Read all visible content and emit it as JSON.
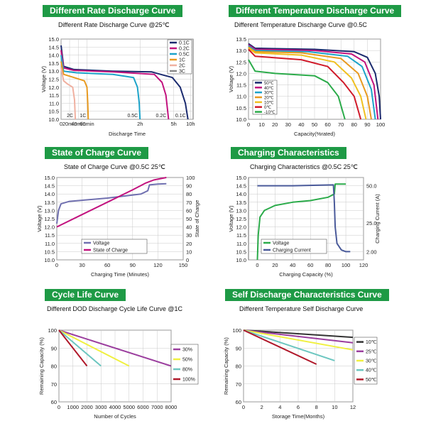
{
  "chart_data": [
    {
      "type": "line",
      "banner": "Different Rate Discharge Curve",
      "title": "Different Rate Discharge Curve @25℃",
      "xlabel": "Discharge Time",
      "ylabel": "Voltage (V)",
      "ylim": [
        10.0,
        15.0
      ],
      "y_ticks": [
        "10.0",
        "10.5",
        "11.0",
        "11.5",
        "12.0",
        "12.5",
        "13.0",
        "13.5",
        "14.0",
        "14.5",
        "15.0"
      ],
      "x_ticks": [
        {
          "label": "0",
          "v": 0
        },
        {
          "label": "20min",
          "v": 0.33
        },
        {
          "label": "40min",
          "v": 0.67
        },
        {
          "label": "60min",
          "v": 1.0
        },
        {
          "label": "2h",
          "v": 3.05
        },
        {
          "label": "5h",
          "v": 4.35
        },
        {
          "label": "10h",
          "v": 5.0
        }
      ],
      "xlim": [
        0,
        5.1
      ],
      "series": [
        {
          "name": "0.1C",
          "color": "#1a2a6e",
          "points": [
            [
              0,
              14.6
            ],
            [
              0.1,
              13.3
            ],
            [
              0.5,
              13.1
            ],
            [
              2.0,
              13.0
            ],
            [
              3.5,
              12.95
            ],
            [
              4.3,
              12.6
            ],
            [
              4.6,
              12.0
            ],
            [
              4.8,
              11.0
            ],
            [
              4.9,
              10.0
            ]
          ]
        },
        {
          "name": "0.2C",
          "color": "#c2127e",
          "points": [
            [
              0,
              14.3
            ],
            [
              0.1,
              13.2
            ],
            [
              0.5,
              13.05
            ],
            [
              2.0,
              12.95
            ],
            [
              3.6,
              12.8
            ],
            [
              3.9,
              12.3
            ],
            [
              4.05,
              11.5
            ],
            [
              4.15,
              10.0
            ]
          ]
        },
        {
          "name": "0.5C",
          "color": "#1ca3c9",
          "points": [
            [
              0,
              14.0
            ],
            [
              0.1,
              13.0
            ],
            [
              0.6,
              12.9
            ],
            [
              2.0,
              12.8
            ],
            [
              2.8,
              12.6
            ],
            [
              2.95,
              12.0
            ],
            [
              3.02,
              11.0
            ],
            [
              3.05,
              10.0
            ]
          ]
        },
        {
          "name": "1C",
          "color": "#e89a20",
          "points": [
            [
              0,
              13.6
            ],
            [
              0.1,
              12.8
            ],
            [
              0.5,
              12.6
            ],
            [
              0.9,
              12.4
            ],
            [
              1.0,
              12.0
            ],
            [
              1.03,
              11.0
            ],
            [
              1.05,
              10.0
            ]
          ]
        },
        {
          "name": "2C",
          "color": "#f0b0a0",
          "points": [
            [
              0,
              13.2
            ],
            [
              0.1,
              12.4
            ],
            [
              0.25,
              12.2
            ],
            [
              0.45,
              12.0
            ],
            [
              0.52,
              11.2
            ],
            [
              0.55,
              10.0
            ]
          ]
        },
        {
          "name": "3C",
          "color": "#888888",
          "points": []
        }
      ],
      "legend": [
        "0.1C",
        "0.2C",
        "0.5C",
        "1C",
        "2C",
        "3C"
      ],
      "annotations": [
        "2C",
        "1C",
        "0.5C",
        "0.2C",
        "0.1C"
      ]
    },
    {
      "type": "line",
      "banner": "Different Temperature Discharge Curve",
      "title": "Different Temperature Discharge Curve @0.5C",
      "xlabel": "Capacity(%rated)",
      "ylabel": "Voltage (V)",
      "xlim": [
        0,
        100
      ],
      "ylim": [
        10.0,
        13.5
      ],
      "y_ticks": [
        "10.0",
        "10.5",
        "11.0",
        "11.5",
        "12.0",
        "12.5",
        "13.0",
        "13.5"
      ],
      "x_ticks": [
        "0",
        "10",
        "20",
        "30",
        "40",
        "50",
        "60",
        "70",
        "80",
        "90",
        "100"
      ],
      "series": [
        {
          "name": "50℃",
          "color": "#1a2a6e",
          "points": [
            [
              0,
              13.3
            ],
            [
              5,
              13.1
            ],
            [
              50,
              13.05
            ],
            [
              80,
              12.95
            ],
            [
              90,
              12.7
            ],
            [
              96,
              12.0
            ],
            [
              99,
              11.0
            ],
            [
              100,
              10.0
            ]
          ]
        },
        {
          "name": "40℃",
          "color": "#c2127e",
          "points": [
            [
              0,
              13.25
            ],
            [
              5,
              13.05
            ],
            [
              50,
              13.0
            ],
            [
              78,
              12.85
            ],
            [
              88,
              12.5
            ],
            [
              95,
              11.5
            ],
            [
              98,
              10.0
            ]
          ]
        },
        {
          "name": "30℃",
          "color": "#1ca3c9",
          "points": [
            [
              0,
              13.2
            ],
            [
              5,
              13.0
            ],
            [
              45,
              12.95
            ],
            [
              75,
              12.75
            ],
            [
              86,
              12.3
            ],
            [
              93,
              11.3
            ],
            [
              96,
              10.0
            ]
          ]
        },
        {
          "name": "20℃",
          "color": "#e89a20",
          "points": [
            [
              0,
              13.15
            ],
            [
              5,
              12.95
            ],
            [
              40,
              12.9
            ],
            [
              70,
              12.65
            ],
            [
              83,
              12.0
            ],
            [
              90,
              11.0
            ],
            [
              93,
              10.0
            ]
          ]
        },
        {
          "name": "10℃",
          "color": "#f0c020",
          "points": [
            [
              0,
              13.1
            ],
            [
              5,
              12.9
            ],
            [
              40,
              12.8
            ],
            [
              65,
              12.5
            ],
            [
              78,
              11.8
            ],
            [
              85,
              11.0
            ],
            [
              89,
              10.0
            ]
          ]
        },
        {
          "name": "0℃",
          "color": "#d01a2a",
          "points": [
            [
              0,
              13.05
            ],
            [
              5,
              12.75
            ],
            [
              40,
              12.6
            ],
            [
              60,
              12.3
            ],
            [
              72,
              11.6
            ],
            [
              80,
              11.0
            ],
            [
              85,
              10.0
            ]
          ]
        },
        {
          "name": "-10℃",
          "color": "#2bab4a",
          "points": [
            [
              0,
              12.6
            ],
            [
              5,
              12.1
            ],
            [
              20,
              12.0
            ],
            [
              50,
              11.9
            ],
            [
              60,
              11.6
            ],
            [
              68,
              11.0
            ],
            [
              73,
              10.0
            ]
          ]
        }
      ],
      "legend": [
        "50℃",
        "40℃",
        "30℃",
        "20℃",
        "10℃",
        "0℃",
        "-10℃"
      ]
    },
    {
      "type": "line",
      "banner": "State of Charge Curve",
      "title": "State of Charge Curve @0.5C 25℃",
      "xlabel": "Charging Time (Minutes)",
      "ylabel": "Voltage (V)",
      "y2label": "State of Charge",
      "xlim": [
        0,
        150
      ],
      "ylim": [
        10.0,
        15.0
      ],
      "y2lim": [
        0,
        100
      ],
      "x_ticks": [
        "0",
        "30",
        "60",
        "90",
        "120",
        "150"
      ],
      "y_ticks": [
        "10.0",
        "10.5",
        "11.0",
        "11.5",
        "12.0",
        "12.5",
        "13.0",
        "13.5",
        "14.0",
        "14.5",
        "15.0"
      ],
      "y2_ticks": [
        "0",
        "10",
        "20",
        "30",
        "40",
        "50",
        "60",
        "70",
        "80",
        "90",
        "100"
      ],
      "series": [
        {
          "name": "Voltage",
          "color": "#7070b0",
          "axis": "y",
          "points": [
            [
              0,
              12.2
            ],
            [
              2,
              13.0
            ],
            [
              5,
              13.4
            ],
            [
              15,
              13.55
            ],
            [
              60,
              13.75
            ],
            [
              100,
              14.0
            ],
            [
              108,
              14.2
            ],
            [
              110,
              14.55
            ],
            [
              120,
              14.6
            ],
            [
              130,
              14.62
            ]
          ]
        },
        {
          "name": "State of Charge",
          "color": "#c2127e",
          "axis": "y2",
          "points": [
            [
              0,
              40
            ],
            [
              30,
              55
            ],
            [
              60,
              70
            ],
            [
              90,
              85
            ],
            [
              105,
              93
            ],
            [
              115,
              97
            ],
            [
              130,
              100
            ]
          ]
        }
      ],
      "legend": [
        "Voltage",
        "State of Charge"
      ]
    },
    {
      "type": "line",
      "banner": "Charging Characteristics",
      "title": "Charging Characteristics @0.5C 25℃",
      "xlabel": "Charging Capacity (%)",
      "ylabel": "Voltage (V)",
      "y2label": "Charging Current (A)",
      "xlim": [
        -10,
        120
      ],
      "ylim": [
        10.0,
        15.0
      ],
      "x_ticks": [
        "0",
        "20",
        "40",
        "60",
        "80",
        "100",
        "120"
      ],
      "y_ticks": [
        "10.0",
        "10.5",
        "11.0",
        "11.5",
        "12.0",
        "12.5",
        "13.0",
        "13.5",
        "14.0",
        "14.5",
        "15.0"
      ],
      "y2_ticks": [
        "2.00",
        "25.0",
        "50.0"
      ],
      "series": [
        {
          "name": "Voltage",
          "color": "#2bab4a",
          "points": [
            [
              0,
              10.0
            ],
            [
              1,
              11.5
            ],
            [
              3,
              12.6
            ],
            [
              8,
              13.0
            ],
            [
              20,
              13.3
            ],
            [
              40,
              13.5
            ],
            [
              60,
              13.6
            ],
            [
              80,
              13.8
            ],
            [
              87,
              14.0
            ],
            [
              88,
              14.6
            ],
            [
              100,
              14.6
            ]
          ]
        },
        {
          "name": "Charging Current",
          "color": "#4a5a9a",
          "points": [
            [
              0,
              14.5
            ],
            [
              40,
              14.5
            ],
            [
              86,
              14.55
            ],
            [
              87,
              13.5
            ],
            [
              88,
              12.0
            ],
            [
              90,
              11.0
            ],
            [
              95,
              10.6
            ],
            [
              100,
              10.5
            ],
            [
              105,
              10.5
            ]
          ]
        }
      ],
      "legend": [
        "Voltage",
        "Charging Current"
      ]
    },
    {
      "type": "line",
      "banner": "Cycle Life Curve",
      "title": "Different DOD Discharge Cycle Life Curve @1C",
      "xlabel": "Number of Cycles",
      "ylabel": "Remaining Capacity (%)",
      "xlim": [
        0,
        8000
      ],
      "ylim": [
        60,
        100
      ],
      "x_ticks": [
        "0",
        "1000",
        "2000",
        "3000",
        "4000",
        "5000",
        "6000",
        "7000",
        "8000"
      ],
      "y_ticks": [
        "60",
        "70",
        "80",
        "90",
        "100"
      ],
      "series": [
        {
          "name": "30%",
          "color": "#9b3e9e",
          "points": [
            [
              0,
              100
            ],
            [
              8000,
              80
            ]
          ]
        },
        {
          "name": "50%",
          "color": "#f0f040",
          "points": [
            [
              0,
              100
            ],
            [
              5000,
              80
            ]
          ]
        },
        {
          "name": "80%",
          "color": "#6cc6c0",
          "points": [
            [
              0,
              100
            ],
            [
              3000,
              80
            ]
          ]
        },
        {
          "name": "100%",
          "color": "#b0182a",
          "points": [
            [
              0,
              100
            ],
            [
              2000,
              80
            ]
          ]
        }
      ],
      "legend": [
        "30%",
        "50%",
        "80%",
        "100%"
      ]
    },
    {
      "type": "line",
      "banner": "Self Discharge Characteristics Curve",
      "title": "Different Temperature Self Discharge Curve",
      "xlabel": "Storage Time(Months)",
      "ylabel": "Remaining Capacity (%)",
      "xlim": [
        0,
        12
      ],
      "ylim": [
        60,
        100
      ],
      "x_ticks": [
        "0",
        "2",
        "4",
        "6",
        "8",
        "10",
        "12"
      ],
      "y_ticks": [
        "60",
        "70",
        "80",
        "90",
        "100"
      ],
      "series": [
        {
          "name": "10℃",
          "color": "#333333",
          "points": [
            [
              0,
              100
            ],
            [
              12,
              96
            ]
          ]
        },
        {
          "name": "25℃",
          "color": "#9b3e9e",
          "points": [
            [
              0,
              100
            ],
            [
              12,
              93
            ]
          ]
        },
        {
          "name": "30℃",
          "color": "#f0f040",
          "points": [
            [
              0,
              100
            ],
            [
              12,
              89
            ]
          ]
        },
        {
          "name": "40℃",
          "color": "#6cc6c0",
          "points": [
            [
              0,
              100
            ],
            [
              10,
              83
            ]
          ]
        },
        {
          "name": "50℃",
          "color": "#b0182a",
          "points": [
            [
              0,
              100
            ],
            [
              8,
              81
            ]
          ]
        }
      ],
      "legend": [
        "10℃",
        "25℃",
        "30℃",
        "40℃",
        "50℃"
      ]
    }
  ]
}
